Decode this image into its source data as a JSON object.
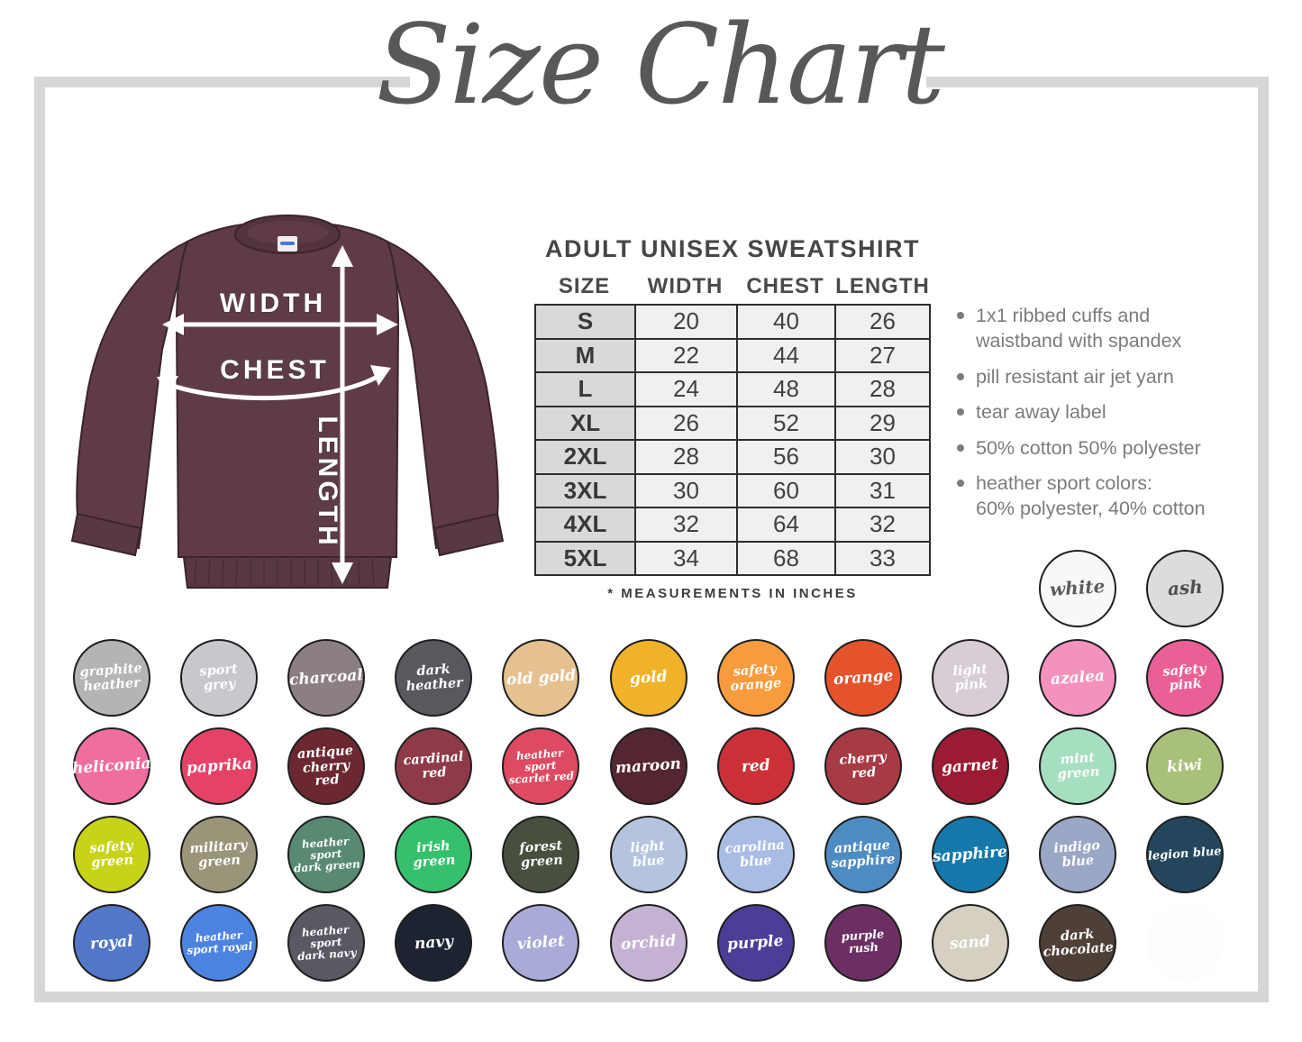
{
  "title": "Size Chart",
  "product": {
    "heading": "ADULT UNISEX SWEATSHIRT",
    "columns": [
      "SIZE",
      "WIDTH",
      "CHEST",
      "LENGTH"
    ],
    "rows": [
      [
        "S",
        "20",
        "40",
        "26"
      ],
      [
        "M",
        "22",
        "44",
        "27"
      ],
      [
        "L",
        "24",
        "48",
        "28"
      ],
      [
        "XL",
        "26",
        "52",
        "29"
      ],
      [
        "2XL",
        "28",
        "56",
        "30"
      ],
      [
        "3XL",
        "30",
        "60",
        "31"
      ],
      [
        "4XL",
        "32",
        "64",
        "32"
      ],
      [
        "5XL",
        "34",
        "68",
        "33"
      ]
    ],
    "footnote": "* MEASUREMENTS IN INCHES"
  },
  "features": [
    "1x1 ribbed cuffs and\nwaistband with spandex",
    "pill resistant air jet yarn",
    "tear away label",
    "50% cotton 50% polyester",
    "heather sport colors:\n60% polyester, 40% cotton"
  ],
  "diagram": {
    "labels": {
      "width": "WIDTH",
      "chest": "CHEST",
      "length": "LENGTH"
    },
    "shirt_color": "#5e3b47"
  },
  "frame_color": "#d6d6d6",
  "swatch_header": [
    {
      "label": "white",
      "color": "#f8f8fa",
      "text": "#5d5d5d"
    },
    {
      "label": "ash",
      "color": "#dbdcde",
      "text": "#4f4f4f"
    }
  ],
  "swatch_rows": [
    [
      {
        "label": "graphite\nheather",
        "color": "#b5b3b6"
      },
      {
        "label": "sport\ngrey",
        "color": "#c7c8cc"
      },
      {
        "label": "charcoal",
        "color": "#8b7f83"
      },
      {
        "label": "dark\nheather",
        "color": "#57595f"
      },
      {
        "label": "old gold",
        "color": "#e5c190"
      },
      {
        "label": "gold",
        "color": "#f0b228"
      },
      {
        "label": "safety\norange",
        "color": "#f89b3d"
      },
      {
        "label": "orange",
        "color": "#e4532c"
      },
      {
        "label": "light\npink",
        "color": "#d8cdd7"
      },
      {
        "label": "azalea",
        "color": "#f492bd"
      },
      {
        "label": "safety\npink",
        "color": "#ea6096"
      }
    ],
    [
      {
        "label": "heliconia",
        "color": "#ef6e9f"
      },
      {
        "label": "paprika",
        "color": "#e54267"
      },
      {
        "label": "antique\ncherry red",
        "color": "#6b2830"
      },
      {
        "label": "cardinal\nred",
        "color": "#8e3a49"
      },
      {
        "label": "heather sport\nscarlet red",
        "color": "#de4a62"
      },
      {
        "label": "maroon",
        "color": "#54262f"
      },
      {
        "label": "red",
        "color": "#cb3137"
      },
      {
        "label": "cherry\nred",
        "color": "#a63b44"
      },
      {
        "label": "garnet",
        "color": "#9a1b33"
      },
      {
        "label": "mint\ngreen",
        "color": "#a6dfc0"
      },
      {
        "label": "kiwi",
        "color": "#a9c079"
      }
    ],
    [
      {
        "label": "safety\ngreen",
        "color": "#c8d317"
      },
      {
        "label": "military\ngreen",
        "color": "#9a9579"
      },
      {
        "label": "heather sport\ndark green",
        "color": "#588a72"
      },
      {
        "label": "irish\ngreen",
        "color": "#36c06e"
      },
      {
        "label": "forest\ngreen",
        "color": "#47503e"
      },
      {
        "label": "light\nblue",
        "color": "#b4c4df"
      },
      {
        "label": "carolina\nblue",
        "color": "#a8bce4"
      },
      {
        "label": "antique\nsapphire",
        "color": "#4c8cc3"
      },
      {
        "label": "sapphire",
        "color": "#1478aa"
      },
      {
        "label": "indigo\nblue",
        "color": "#9ba7c6"
      },
      {
        "label": "legion blue",
        "color": "#24465c"
      }
    ],
    [
      {
        "label": "royal",
        "color": "#5377c8"
      },
      {
        "label": "heather\nsport royal",
        "color": "#4c83e1"
      },
      {
        "label": "heather sport\ndark navy",
        "color": "#595863"
      },
      {
        "label": "navy",
        "color": "#1d2431"
      },
      {
        "label": "violet",
        "color": "#a8aad7"
      },
      {
        "label": "orchid",
        "color": "#c5b2d3"
      },
      {
        "label": "purple",
        "color": "#4c3d97"
      },
      {
        "label": "purple rush",
        "color": "#6b2f63"
      },
      {
        "label": "sand",
        "color": "#d6d0c2"
      },
      {
        "label": "dark\nchocolate",
        "color": "#4f4037"
      },
      {
        "label": "",
        "color": "#fdfdfd",
        "ghost": true
      }
    ]
  ]
}
